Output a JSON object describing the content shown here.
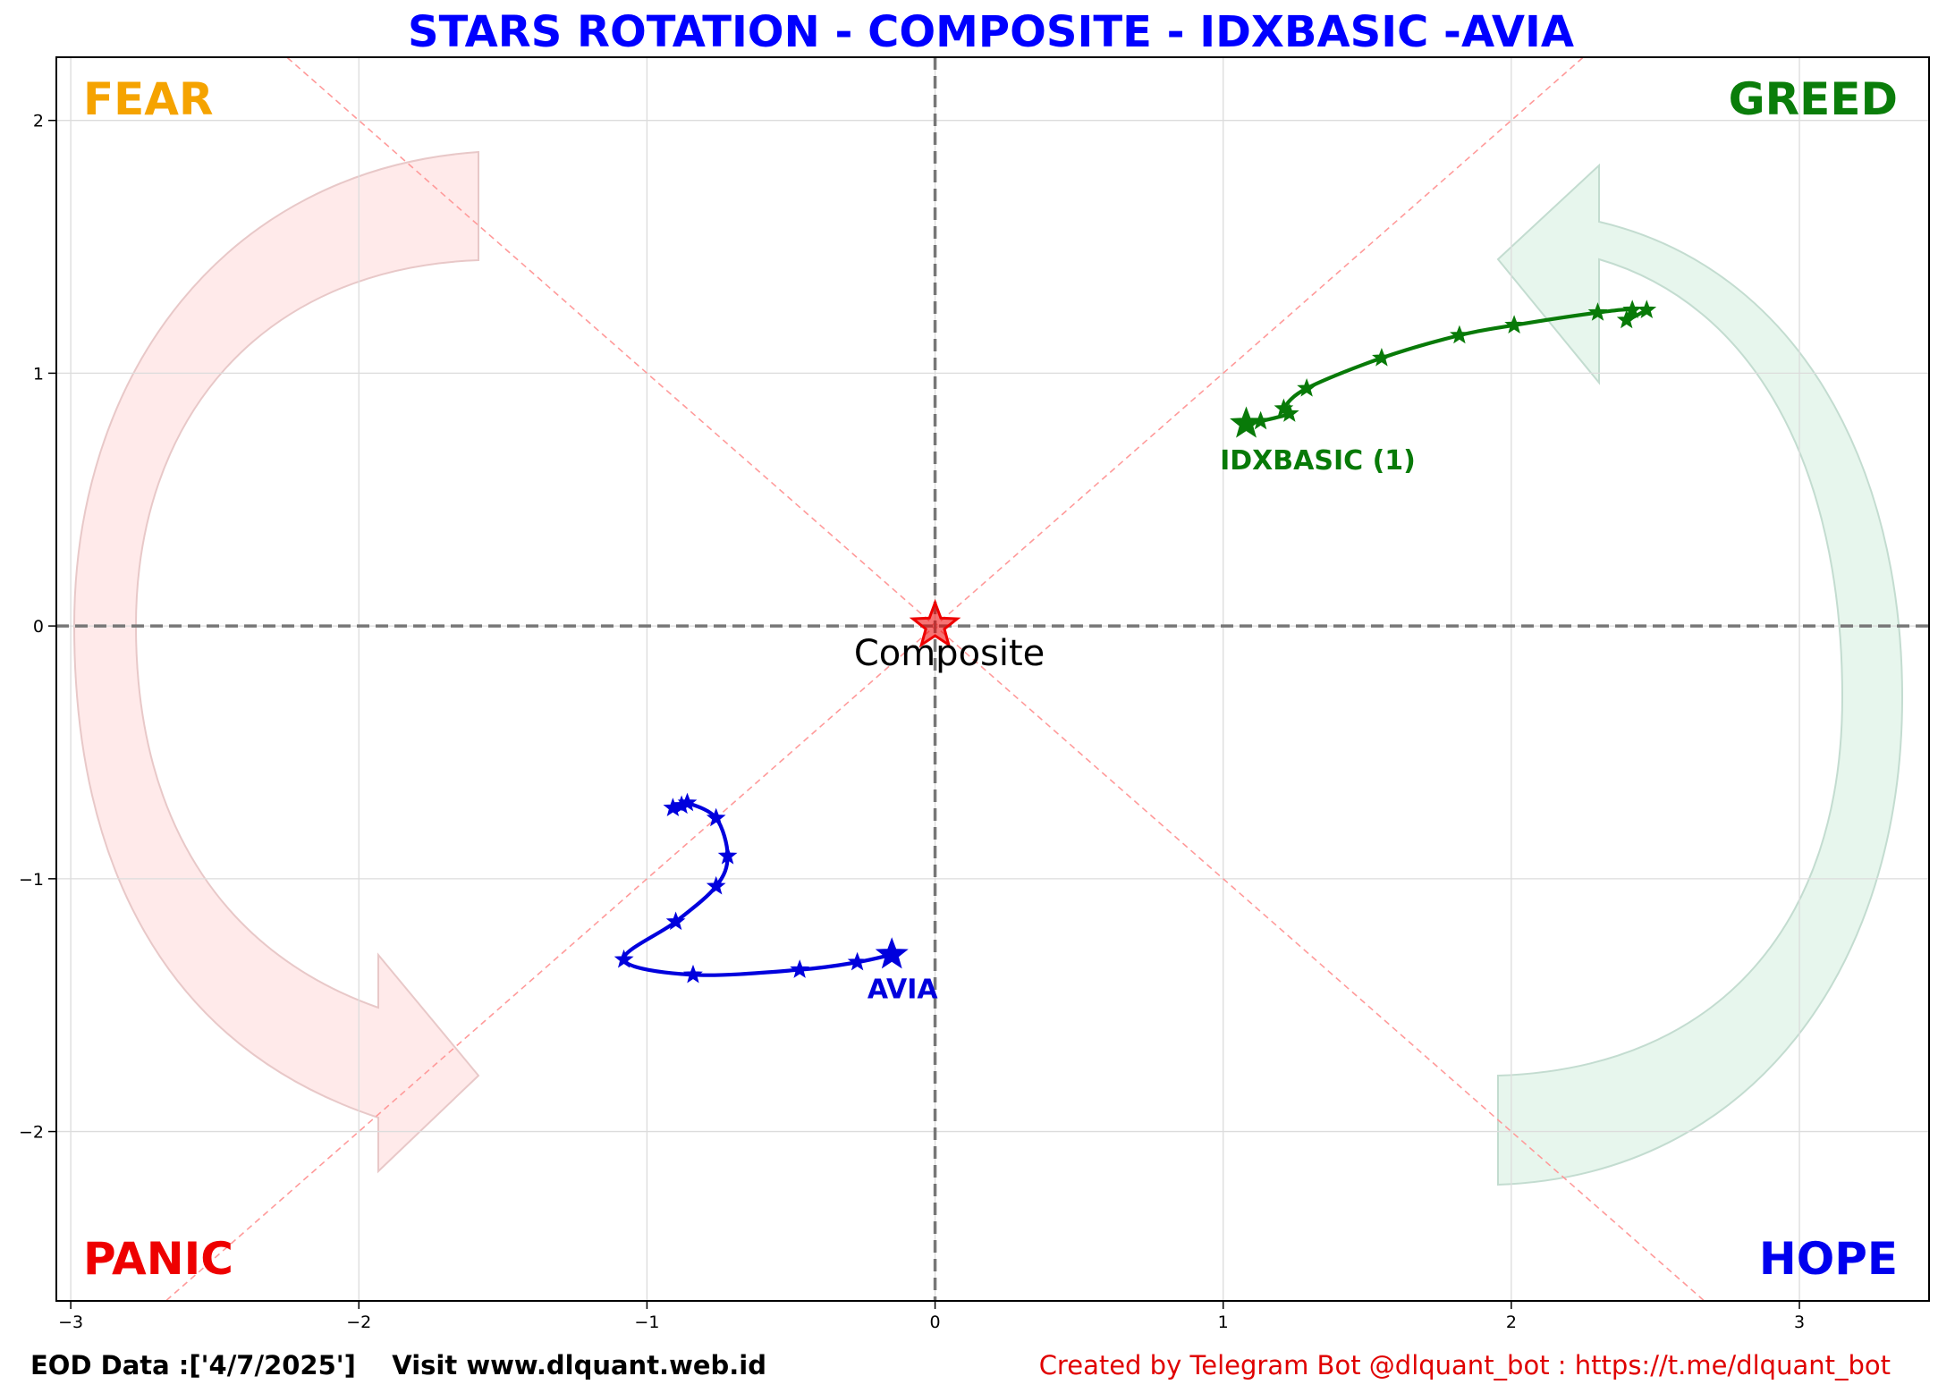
{
  "chart_data": {
    "type": "scatter",
    "title": "STARS ROTATION - COMPOSITE - IDXBASIC -AVIA",
    "xlim": [
      -3.05,
      3.45
    ],
    "ylim": [
      -2.67,
      2.25
    ],
    "xticks": [
      -3,
      -2,
      -1,
      0,
      1,
      2,
      3
    ],
    "yticks": [
      2,
      1,
      0,
      -1,
      -2
    ],
    "xtick_labels": [
      "−3",
      "−2",
      "−1",
      "0",
      "1",
      "2",
      "3"
    ],
    "ytick_labels": [
      "2",
      "1",
      "0",
      "−1",
      "−2"
    ],
    "grid": true,
    "quadrants": {
      "top_left": {
        "label": "FEAR",
        "color": "#f5a300"
      },
      "top_right": {
        "label": "GREED",
        "color": "#0a7d0a"
      },
      "bottom_left": {
        "label": "PANIC",
        "color": "#ee0000"
      },
      "bottom_right": {
        "label": "HOPE",
        "color": "#0000ee"
      }
    },
    "center": {
      "label": "Composite",
      "x": 0,
      "y": 0,
      "color": "#ee0000"
    },
    "series": [
      {
        "name": "IDXBASIC (1)",
        "color": "#087a08",
        "points": [
          [
            2.47,
            1.25
          ],
          [
            2.4,
            1.21
          ],
          [
            2.42,
            1.25
          ],
          [
            2.3,
            1.24
          ],
          [
            2.01,
            1.19
          ],
          [
            1.82,
            1.15
          ],
          [
            1.55,
            1.06
          ],
          [
            1.29,
            0.94
          ],
          [
            1.21,
            0.86
          ],
          [
            1.23,
            0.84
          ],
          [
            1.13,
            0.81
          ],
          [
            1.08,
            0.8
          ]
        ]
      },
      {
        "name": "AVIA",
        "color": "#0000dd",
        "points": [
          [
            -0.91,
            -0.72
          ],
          [
            -0.88,
            -0.71
          ],
          [
            -0.86,
            -0.7
          ],
          [
            -0.76,
            -0.76
          ],
          [
            -0.72,
            -0.91
          ],
          [
            -0.76,
            -1.03
          ],
          [
            -0.9,
            -1.17
          ],
          [
            -1.08,
            -1.32
          ],
          [
            -0.84,
            -1.38
          ],
          [
            -0.47,
            -1.36
          ],
          [
            -0.27,
            -1.33
          ],
          [
            -0.15,
            -1.3
          ]
        ]
      }
    ]
  },
  "footer": {
    "left": "EOD Data :['4/7/2025']    Visit www.dlquant.web.id",
    "right": "Created by Telegram Bot @dlquant_bot : https://t.me/dlquant_bot"
  }
}
